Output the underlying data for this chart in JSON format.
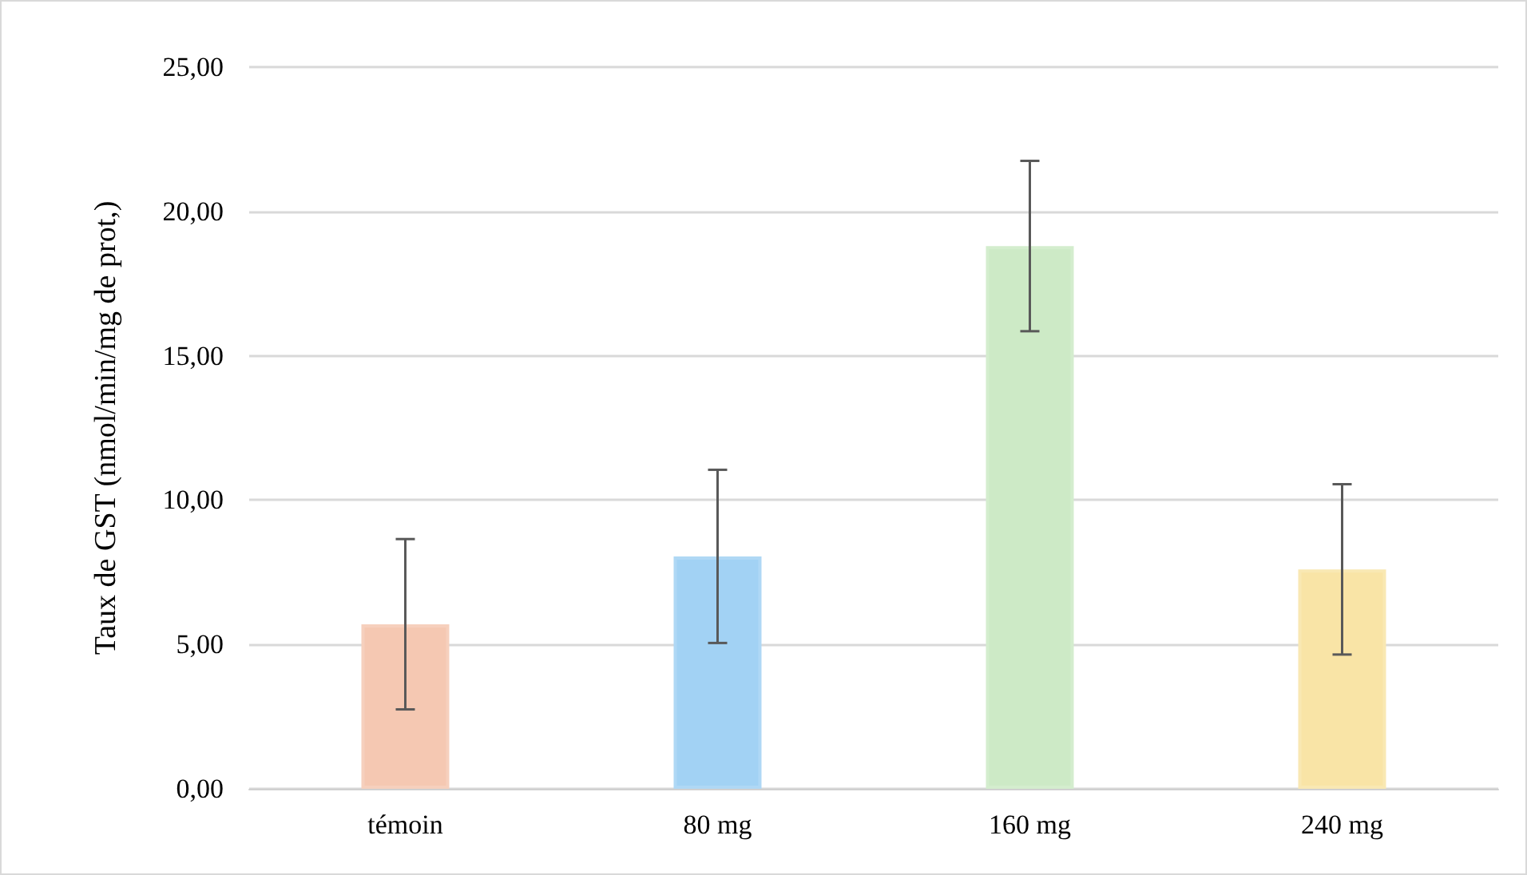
{
  "chart_data": {
    "type": "bar",
    "ylabel": "Taux de GST (nmol/min/mg de prot,)",
    "categories": [
      "témoin",
      "80 mg",
      "160 mg",
      "240 mg"
    ],
    "values": [
      5.7,
      8.05,
      18.8,
      7.6
    ],
    "errors": [
      2.95,
      3.0,
      2.95,
      2.95
    ],
    "colors": [
      "#f5c8b2",
      "#a2d2f4",
      "#cdeac6",
      "#f9e4a6"
    ],
    "ylim": [
      0,
      25
    ],
    "yticks": [
      {
        "value": 0,
        "label": "0,00"
      },
      {
        "value": 5,
        "label": "5,00"
      },
      {
        "value": 10,
        "label": "10,00"
      },
      {
        "value": 15,
        "label": "15,00"
      },
      {
        "value": 20,
        "label": "20,00"
      },
      {
        "value": 25,
        "label": "25,00"
      }
    ],
    "grid": "y"
  }
}
